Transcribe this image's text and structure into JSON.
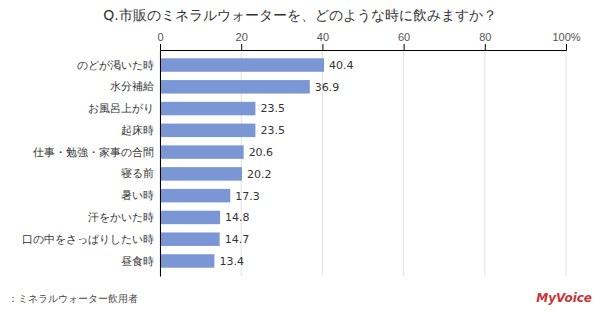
{
  "chart_data": {
    "type": "bar",
    "orientation": "horizontal",
    "title": "Q.市販のミネラルウォーターを、どのような時に飲みますか？",
    "categories": [
      "昼食時",
      "口の中をさっぱりしたい時",
      "汗をかいた時",
      "暑い時",
      "寝る前",
      "仕事・勉強・家事の合間",
      "起床時",
      "お風呂上がり",
      "水分補給",
      "のどが渇いた時"
    ],
    "values": [
      13.4,
      14.7,
      14.8,
      17.3,
      20.2,
      20.6,
      23.5,
      23.5,
      36.9,
      40.4
    ],
    "color": "#7b96d4",
    "xlim": [
      0,
      100
    ],
    "xticks": [
      0,
      20,
      40,
      60,
      80,
      {
        "value": 100,
        "label": "100%"
      }
    ],
    "grid": true,
    "data_labels": true,
    "annotations": [
      {
        "text": "：ミネラルウォーター飲用者"
      },
      {
        "text": "MyVoice",
        "color": "#cc3333"
      }
    ]
  }
}
